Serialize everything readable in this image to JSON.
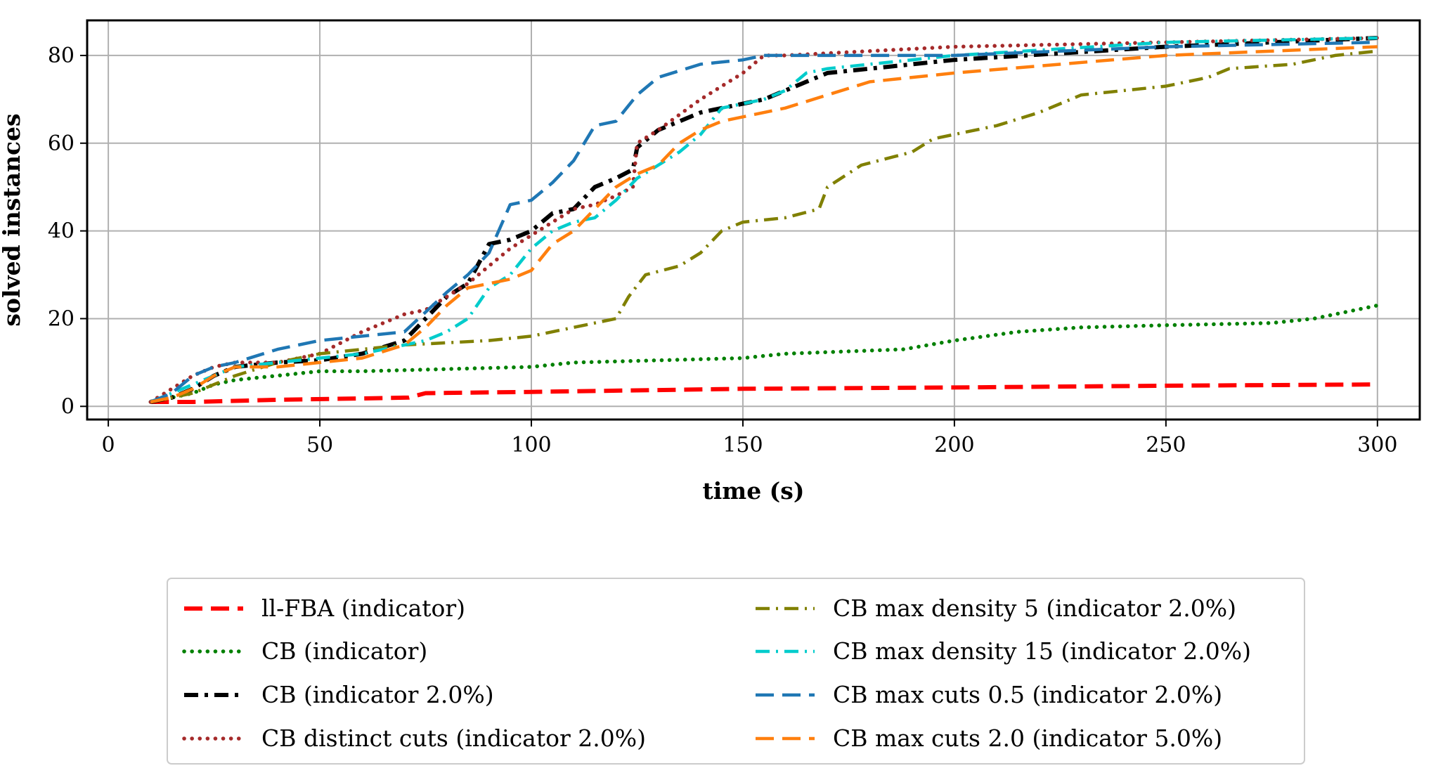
{
  "chart_data": {
    "type": "line",
    "title": "",
    "xlabel": "time (s)",
    "ylabel": "solved instances",
    "xlim": [
      -5,
      310
    ],
    "ylim": [
      -3,
      88
    ],
    "xticks": [
      0,
      50,
      100,
      150,
      200,
      250,
      300
    ],
    "yticks": [
      0,
      20,
      40,
      60,
      80
    ],
    "grid": true,
    "legend_position": "below, two columns",
    "series": [
      {
        "name": "ll-FBA (indicator)",
        "color": "#ff0000",
        "style": "dashed",
        "x": [
          10,
          15,
          20,
          40,
          60,
          71,
          75,
          100,
          150,
          200,
          250,
          300
        ],
        "y": [
          1,
          1,
          1,
          1.5,
          1.8,
          2,
          3,
          3.3,
          4,
          4.3,
          4.7,
          5
        ]
      },
      {
        "name": "CB (indicator)",
        "color": "#008000",
        "style": "dotted",
        "x": [
          10,
          15,
          20,
          25,
          30,
          40,
          50,
          60,
          80,
          100,
          110,
          150,
          160,
          188,
          200,
          215,
          230,
          250,
          275,
          285,
          300
        ],
        "y": [
          1,
          2,
          3,
          5,
          6,
          7,
          8,
          8,
          8.5,
          9,
          10,
          11,
          12,
          13,
          15,
          17,
          18,
          18.5,
          19,
          20,
          23
        ]
      },
      {
        "name": "CB (indicator 2.0%)",
        "color": "#000000",
        "style": "dashdot-black",
        "x": [
          10,
          15,
          20,
          25,
          30,
          40,
          50,
          60,
          70,
          75,
          80,
          85,
          90,
          95,
          100,
          105,
          110,
          115,
          120,
          124,
          125,
          130,
          135,
          140,
          145,
          150,
          155,
          160,
          165,
          170,
          180,
          200,
          250,
          300
        ],
        "y": [
          1,
          2,
          4,
          7,
          9,
          10,
          10.5,
          12,
          15,
          20,
          25,
          28,
          37,
          38,
          40,
          44,
          45,
          50,
          52,
          54,
          59,
          63,
          65,
          67,
          68,
          69,
          70,
          72,
          74,
          76,
          77,
          79,
          82,
          84
        ]
      },
      {
        "name": "CB distinct cuts (indicator 2.0%)",
        "color": "#a52a2a",
        "style": "dotted",
        "x": [
          10,
          15,
          20,
          25,
          30,
          40,
          50,
          60,
          70,
          75,
          80,
          85,
          90,
          95,
          100,
          105,
          110,
          115,
          120,
          124,
          125,
          130,
          140,
          150,
          155,
          160,
          200,
          250,
          300
        ],
        "y": [
          1,
          4,
          7,
          9,
          10,
          10,
          12,
          17,
          21,
          22,
          25,
          28,
          32,
          36,
          39,
          42,
          45,
          46,
          48,
          50,
          60,
          63,
          70,
          76,
          80,
          80,
          82,
          83,
          84
        ]
      },
      {
        "name": "CB max density 5 (indicator 2.0%)",
        "color": "#808000",
        "style": "dashdot",
        "x": [
          10,
          15,
          20,
          25,
          30,
          40,
          50,
          60,
          70,
          80,
          90,
          100,
          110,
          120,
          123,
          127,
          135,
          140,
          145,
          150,
          160,
          168,
          170,
          178,
          190,
          195,
          200,
          210,
          220,
          230,
          240,
          250,
          260,
          265,
          280,
          290,
          300
        ],
        "y": [
          1,
          2,
          3,
          5,
          7,
          10,
          12,
          13,
          14,
          14.5,
          15,
          16,
          18,
          20,
          25,
          30,
          32,
          35,
          40,
          42,
          43,
          45,
          50,
          55,
          58,
          61,
          62,
          64,
          67,
          71,
          72,
          73,
          75,
          77,
          78,
          80,
          81
        ]
      },
      {
        "name": "CB max density 15 (indicator 2.0%)",
        "color": "#00cccc",
        "style": "dashdot",
        "x": [
          10,
          15,
          20,
          25,
          30,
          40,
          50,
          60,
          70,
          75,
          80,
          85,
          90,
          95,
          100,
          105,
          110,
          115,
          120,
          125,
          130,
          135,
          140,
          145,
          150,
          155,
          160,
          165,
          170,
          180,
          190,
          200,
          250,
          300
        ],
        "y": [
          1,
          3,
          5,
          7,
          9,
          10,
          11,
          12,
          14,
          15,
          17,
          20,
          27,
          30,
          36,
          40,
          42,
          43,
          47,
          52,
          55,
          58,
          62,
          68,
          69,
          70,
          72,
          76,
          77,
          78,
          79,
          80,
          83,
          84
        ]
      },
      {
        "name": "CB max cuts 0.5 (indicator 2.0%)",
        "color": "#1f77b4",
        "style": "dashed",
        "x": [
          10,
          15,
          20,
          25,
          30,
          40,
          50,
          60,
          70,
          80,
          85,
          90,
          95,
          100,
          105,
          110,
          115,
          120,
          125,
          130,
          140,
          150,
          155,
          200,
          250,
          300
        ],
        "y": [
          1,
          3,
          7,
          9,
          10,
          13,
          15,
          16,
          17,
          26,
          30,
          35,
          46,
          47,
          51,
          56,
          64,
          65,
          71,
          75,
          78,
          79,
          80,
          80,
          82,
          83
        ]
      },
      {
        "name": "CB max cuts 2.0 (indicator 5.0%)",
        "color": "#ff7f0e",
        "style": "dashed",
        "x": [
          10,
          15,
          20,
          25,
          30,
          40,
          50,
          60,
          70,
          75,
          80,
          85,
          90,
          95,
          100,
          105,
          110,
          115,
          120,
          125,
          130,
          135,
          140,
          145,
          150,
          160,
          170,
          180,
          200,
          250,
          300
        ],
        "y": [
          1,
          2,
          4,
          7,
          9,
          9,
          10,
          11,
          14,
          18,
          23,
          27,
          28,
          29,
          31,
          37,
          40,
          45,
          50,
          53,
          55,
          60,
          63,
          65,
          66,
          68,
          71,
          74,
          76,
          80,
          82
        ]
      }
    ]
  }
}
